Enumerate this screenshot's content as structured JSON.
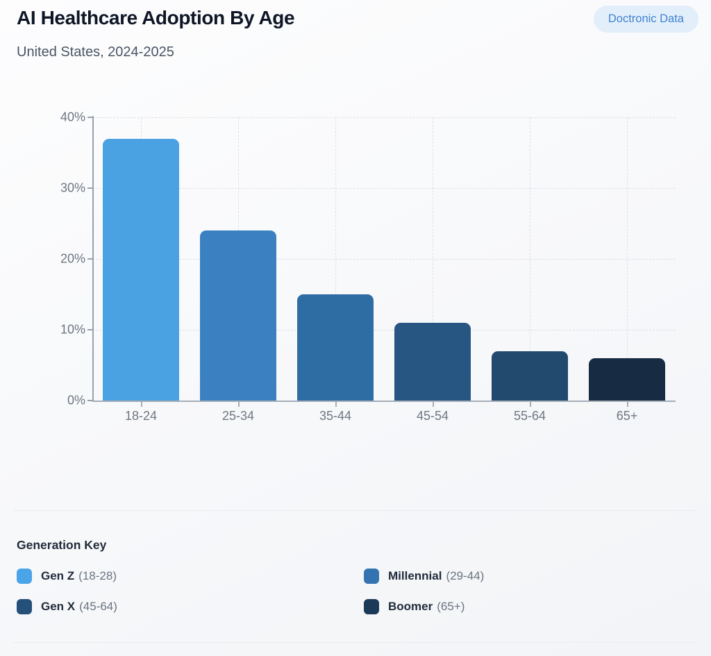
{
  "header": {
    "title": "AI Healthcare Adoption By Age",
    "subtitle": "United States, 2024-2025",
    "badge": "Doctronic Data"
  },
  "chart_data": {
    "type": "bar",
    "title": "AI Healthcare Adoption By Age",
    "categories": [
      "18-24",
      "25-34",
      "35-44",
      "45-54",
      "55-64",
      "65+"
    ],
    "values": [
      37,
      24,
      15,
      11,
      7,
      6
    ],
    "unit": "%",
    "xlabel": "",
    "ylabel": "",
    "ylim": [
      0,
      40
    ],
    "yticks": [
      0,
      10,
      20,
      30,
      40
    ],
    "ytick_labels": [
      "0%",
      "10%",
      "20%",
      "30%",
      "40%"
    ],
    "grid": "dashed horizontal and vertical",
    "legend_position": "below, separate key",
    "bar_colors": [
      "#4ba2e3",
      "#3b81c2",
      "#2e6ca4",
      "#265681",
      "#224a6e",
      "#172b42"
    ]
  },
  "legend": {
    "heading": "Generation Key",
    "items": [
      {
        "name": "Gen Z",
        "range": "(18-28)",
        "color": "#4ba3e8"
      },
      {
        "name": "Millennial",
        "range": "(29-44)",
        "color": "#3273b0"
      },
      {
        "name": "Gen X",
        "range": "(45-64)",
        "color": "#24507a"
      },
      {
        "name": "Boomer",
        "range": "(65+)",
        "color": "#1b3a57"
      }
    ]
  },
  "colors": {
    "badge_bg": "#e3eefb",
    "badge_text": "#3f83cf",
    "axis": "#9aa3ae",
    "grid": "#dce1e7",
    "title_text": "#0e1626",
    "subtitle_text": "#4a5463",
    "tick_label": "#6e7682"
  }
}
